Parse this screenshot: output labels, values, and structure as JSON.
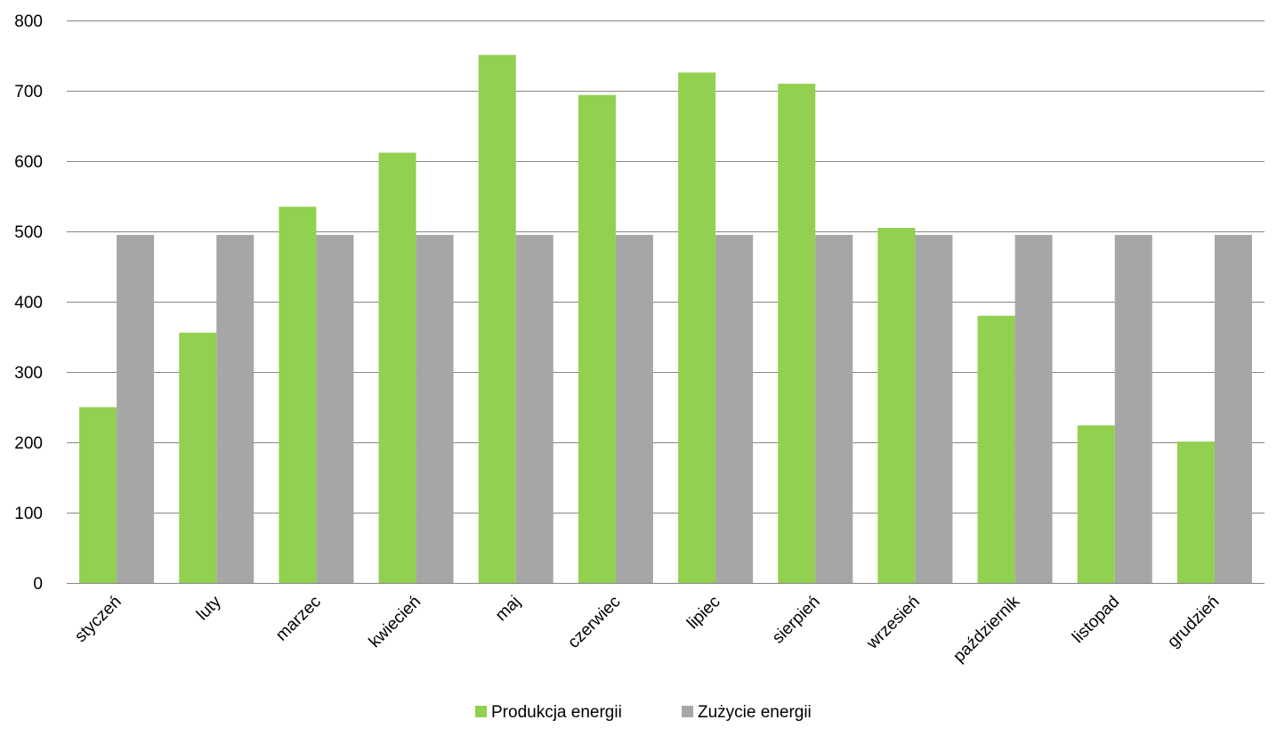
{
  "chart_data": {
    "type": "bar",
    "title": "",
    "xlabel": "",
    "ylabel": "",
    "ylim": [
      0,
      800
    ],
    "yticks": [
      0,
      100,
      200,
      300,
      400,
      500,
      600,
      700,
      800
    ],
    "grid": true,
    "legend_position": "bottom",
    "categories": [
      "styczeń",
      "luty",
      "marzec",
      "kwiecień",
      "maj",
      "czerwiec",
      "lipiec",
      "sierpień",
      "wrzesień",
      "październik",
      "listopad",
      "grudzień"
    ],
    "series": [
      {
        "name": "Produkcja energii",
        "color": "#92d050",
        "values": [
          250,
          356,
          535,
          612,
          751,
          694,
          726,
          710,
          505,
          380,
          224,
          201
        ]
      },
      {
        "name": "Zużycie energii",
        "color": "#a6a6a6",
        "values": [
          495,
          495,
          495,
          495,
          495,
          495,
          495,
          495,
          495,
          495,
          495,
          495
        ]
      }
    ]
  }
}
